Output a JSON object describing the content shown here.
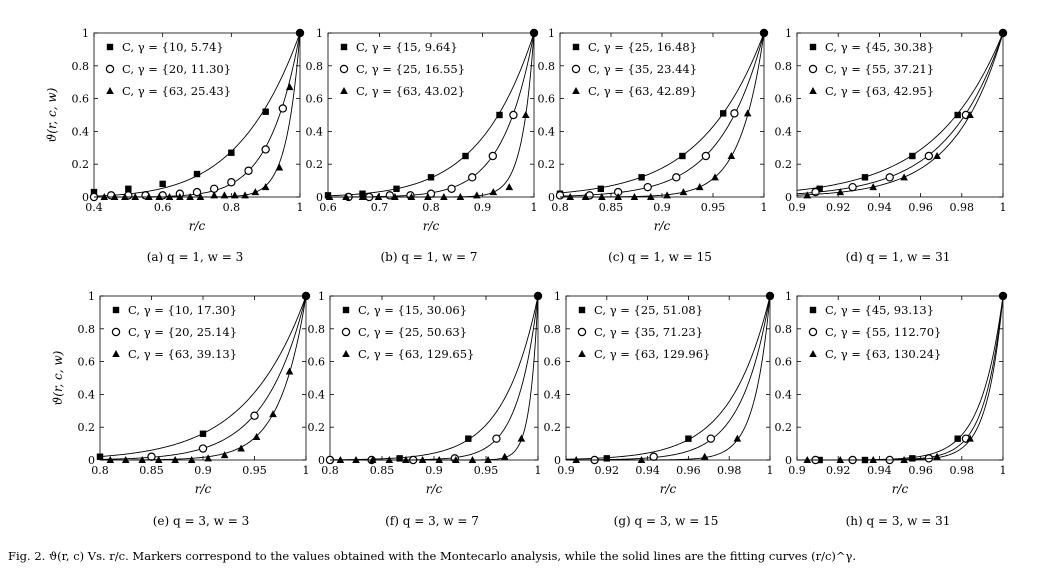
{
  "caption": "Fig. 2.   ϑ(r, c) Vs. r/c. Markers correspond to the values obtained with the Montecarlo analysis, while the solid lines are the fitting curves (r/c)^γ.",
  "chart_data": [
    {
      "type": "line",
      "subcaption": "(a) q = 1, w = 3",
      "xlabel": "r/c",
      "ylabel": "ϑ(r, c, w)",
      "xlim": [
        0.4,
        1
      ],
      "ylim": [
        0,
        1
      ],
      "xticks": [
        "0.4",
        "0.6",
        "0.8",
        "1"
      ],
      "xtickvals": [
        0.4,
        0.6,
        0.8,
        1
      ],
      "yticks": [
        "0",
        "0.2",
        "0.4",
        "0.6",
        "0.8",
        "1"
      ],
      "ytickvals": [
        0,
        0.2,
        0.4,
        0.6,
        0.8,
        1
      ],
      "series": [
        {
          "name": "C, γ = {10, 5.74}",
          "marker": "square",
          "gamma": 5.74,
          "x": [
            0.4,
            0.5,
            0.6,
            0.7,
            0.8,
            0.9,
            1.0
          ],
          "y": [
            0.03,
            0.05,
            0.08,
            0.14,
            0.27,
            0.52,
            1.0
          ]
        },
        {
          "name": "C, γ = {20, 11.30}",
          "marker": "circle",
          "gamma": 11.3,
          "x": [
            0.4,
            0.45,
            0.5,
            0.55,
            0.6,
            0.65,
            0.7,
            0.75,
            0.8,
            0.85,
            0.9,
            0.95,
            1.0
          ],
          "y": [
            0.0,
            0.01,
            0.01,
            0.01,
            0.01,
            0.02,
            0.03,
            0.05,
            0.09,
            0.16,
            0.29,
            0.54,
            1.0
          ]
        },
        {
          "name": "C, γ = {63, 25.43}",
          "marker": "triangle",
          "gamma": 25.43,
          "x": [
            0.43,
            0.46,
            0.49,
            0.52,
            0.56,
            0.59,
            0.62,
            0.65,
            0.68,
            0.71,
            0.75,
            0.78,
            0.81,
            0.84,
            0.87,
            0.9,
            0.94,
            0.97,
            1.0
          ],
          "y": [
            0,
            0,
            0,
            0,
            0,
            0,
            0,
            0,
            0,
            0,
            0.01,
            0.01,
            0.01,
            0.01,
            0.03,
            0.06,
            0.18,
            0.67,
            1.0
          ]
        }
      ]
    },
    {
      "type": "line",
      "subcaption": "(b) q = 1, w = 7",
      "xlabel": "r/c",
      "ylabel": "",
      "xlim": [
        0.6,
        1
      ],
      "ylim": [
        0,
        1
      ],
      "xticks": [
        "0.6",
        "0.7",
        "0.8",
        "0.9",
        "1"
      ],
      "xtickvals": [
        0.6,
        0.7,
        0.8,
        0.9,
        1
      ],
      "yticks": [
        "0",
        "0.2",
        "0.4",
        "0.6",
        "0.8",
        "1"
      ],
      "ytickvals": [
        0,
        0.2,
        0.4,
        0.6,
        0.8,
        1
      ],
      "series": [
        {
          "name": "C, γ = {15, 9.64}",
          "marker": "square",
          "gamma": 9.64,
          "x": [
            0.6,
            0.667,
            0.733,
            0.8,
            0.867,
            0.933,
            1.0
          ],
          "y": [
            0.01,
            0.02,
            0.05,
            0.12,
            0.25,
            0.5,
            1.0
          ]
        },
        {
          "name": "C, γ = {25, 16.55}",
          "marker": "circle",
          "gamma": 16.55,
          "x": [
            0.64,
            0.68,
            0.72,
            0.76,
            0.8,
            0.84,
            0.88,
            0.92,
            0.96,
            1.0
          ],
          "y": [
            0,
            0,
            0.01,
            0.01,
            0.02,
            0.05,
            0.12,
            0.25,
            0.5,
            1.0
          ]
        },
        {
          "name": "C, γ = {63, 43.02}",
          "marker": "triangle",
          "gamma": 43.02,
          "x": [
            0.603,
            0.635,
            0.667,
            0.698,
            0.73,
            0.762,
            0.794,
            0.825,
            0.857,
            0.889,
            0.921,
            0.952,
            0.984,
            1.0
          ],
          "y": [
            0,
            0,
            0,
            0,
            0,
            0,
            0,
            0,
            0,
            0.01,
            0.03,
            0.06,
            0.5,
            1.0
          ]
        }
      ]
    },
    {
      "type": "line",
      "subcaption": "(c) q = 1, w = 15",
      "xlabel": "r/c",
      "ylabel": "",
      "xlim": [
        0.8,
        1
      ],
      "ylim": [
        0,
        1
      ],
      "xticks": [
        "0.8",
        "0.85",
        "0.9",
        "0.95",
        "1"
      ],
      "xtickvals": [
        0.8,
        0.85,
        0.9,
        0.95,
        1
      ],
      "yticks": [
        "0",
        "0.2",
        "0.4",
        "0.6",
        "0.8",
        "1"
      ],
      "ytickvals": [
        0,
        0.2,
        0.4,
        0.6,
        0.8,
        1
      ],
      "series": [
        {
          "name": "C, γ = {25, 16.48}",
          "marker": "square",
          "gamma": 16.48,
          "x": [
            0.8,
            0.84,
            0.88,
            0.92,
            0.96,
            1.0
          ],
          "y": [
            0.02,
            0.05,
            0.12,
            0.25,
            0.51,
            1.0
          ]
        },
        {
          "name": "C, γ = {35, 23.44}",
          "marker": "circle",
          "gamma": 23.44,
          "x": [
            0.8,
            0.829,
            0.857,
            0.886,
            0.914,
            0.943,
            0.971,
            1.0
          ],
          "y": [
            0.01,
            0.01,
            0.03,
            0.06,
            0.12,
            0.25,
            0.51,
            1.0
          ]
        },
        {
          "name": "C, γ = {63, 42.89}",
          "marker": "triangle",
          "gamma": 42.89,
          "x": [
            0.81,
            0.825,
            0.841,
            0.857,
            0.873,
            0.889,
            0.905,
            0.921,
            0.937,
            0.952,
            0.968,
            0.984,
            1.0
          ],
          "y": [
            0,
            0,
            0,
            0,
            0,
            0,
            0.01,
            0.03,
            0.06,
            0.12,
            0.25,
            0.51,
            1.0
          ]
        }
      ]
    },
    {
      "type": "line",
      "subcaption": "(d) q = 1, w = 31",
      "xlabel": "",
      "ylabel": "",
      "xlim": [
        0.9,
        1
      ],
      "ylim": [
        0,
        1
      ],
      "xticks": [
        "0.9",
        "0.92",
        "0.94",
        "0.96",
        "0.98",
        "1"
      ],
      "xtickvals": [
        0.9,
        0.92,
        0.94,
        0.96,
        0.98,
        1
      ],
      "yticks": [
        "0",
        "0.2",
        "0.4",
        "0.6",
        "0.8",
        "1"
      ],
      "ytickvals": [
        0,
        0.2,
        0.4,
        0.6,
        0.8,
        1
      ],
      "series": [
        {
          "name": "C, γ = {45, 30.38}",
          "marker": "square",
          "gamma": 30.38,
          "x": [
            0.911,
            0.933,
            0.956,
            0.978,
            1.0
          ],
          "y": [
            0.05,
            0.12,
            0.25,
            0.5,
            1.0
          ]
        },
        {
          "name": "C, γ = {55, 37.21}",
          "marker": "circle",
          "gamma": 37.21,
          "x": [
            0.909,
            0.927,
            0.945,
            0.964,
            0.982,
            1.0
          ],
          "y": [
            0.03,
            0.06,
            0.12,
            0.25,
            0.5,
            1.0
          ]
        },
        {
          "name": "C, γ = {63, 42.95}",
          "marker": "triangle",
          "gamma": 42.95,
          "x": [
            0.905,
            0.921,
            0.937,
            0.952,
            0.968,
            0.984,
            1.0
          ],
          "y": [
            0.01,
            0.03,
            0.06,
            0.12,
            0.25,
            0.5,
            1.0
          ]
        }
      ]
    },
    {
      "type": "line",
      "subcaption": "(e) q = 3, w = 3",
      "xlabel": "r/c",
      "ylabel": "ϑ(r, c, w)",
      "xlim": [
        0.8,
        1
      ],
      "ylim": [
        0,
        1
      ],
      "xticks": [
        "0.8",
        "0.85",
        "0.9",
        "0.95",
        "1"
      ],
      "xtickvals": [
        0.8,
        0.85,
        0.9,
        0.95,
        1
      ],
      "yticks": [
        "0",
        "0.2",
        "0.4",
        "0.6",
        "0.8",
        "1"
      ],
      "ytickvals": [
        0,
        0.2,
        0.4,
        0.6,
        0.8,
        1
      ],
      "series": [
        {
          "name": "C, γ = {10, 17.30}",
          "marker": "square",
          "gamma": 17.3,
          "x": [
            0.8,
            0.9,
            1.0
          ],
          "y": [
            0.02,
            0.16,
            1.0
          ]
        },
        {
          "name": "C, γ = {20, 25.14}",
          "marker": "circle",
          "gamma": 25.14,
          "x": [
            0.85,
            0.9,
            0.95,
            1.0
          ],
          "y": [
            0.02,
            0.07,
            0.27,
            1.0
          ]
        },
        {
          "name": "C, γ = {63, 39.13}",
          "marker": "triangle",
          "gamma": 39.13,
          "x": [
            0.81,
            0.825,
            0.841,
            0.857,
            0.873,
            0.889,
            0.905,
            0.921,
            0.937,
            0.952,
            0.968,
            0.984,
            1.0
          ],
          "y": [
            0,
            0,
            0,
            0,
            0,
            0,
            0.01,
            0.03,
            0.07,
            0.14,
            0.28,
            0.54,
            1.0
          ]
        }
      ]
    },
    {
      "type": "line",
      "subcaption": "(f) q = 3, w = 7",
      "xlabel": "r/c",
      "ylabel": "",
      "xlim": [
        0.8,
        1
      ],
      "ylim": [
        0,
        1
      ],
      "xticks": [
        "0.8",
        "0.85",
        "0.9",
        "0.95",
        "1"
      ],
      "xtickvals": [
        0.8,
        0.85,
        0.9,
        0.95,
        1
      ],
      "yticks": [
        "0",
        "0.2",
        "0.4",
        "0.6",
        "0.8",
        "1"
      ],
      "ytickvals": [
        0,
        0.2,
        0.4,
        0.6,
        0.8,
        1
      ],
      "series": [
        {
          "name": "C, γ = {15, 30.06}",
          "marker": "square",
          "gamma": 30.06,
          "x": [
            0.8,
            0.867,
            0.933,
            1.0
          ],
          "y": [
            0,
            0.01,
            0.13,
            1.0
          ]
        },
        {
          "name": "C, γ = {25, 50.63}",
          "marker": "circle",
          "gamma": 50.63,
          "x": [
            0.8,
            0.84,
            0.88,
            0.92,
            0.96,
            1.0
          ],
          "y": [
            0,
            0,
            0,
            0.01,
            0.13,
            1.0
          ]
        },
        {
          "name": "C, γ = {63, 129.65}",
          "marker": "triangle",
          "gamma": 129.65,
          "x": [
            0.81,
            0.825,
            0.841,
            0.857,
            0.873,
            0.889,
            0.905,
            0.921,
            0.937,
            0.952,
            0.968,
            0.984,
            1.0
          ],
          "y": [
            0,
            0,
            0,
            0,
            0,
            0,
            0,
            0,
            0,
            0,
            0.02,
            0.13,
            1.0
          ]
        }
      ]
    },
    {
      "type": "line",
      "subcaption": "(g) q = 3, w = 15",
      "xlabel": "r/c",
      "ylabel": "",
      "xlim": [
        0.9,
        1
      ],
      "ylim": [
        0,
        1
      ],
      "xticks": [
        "0.9",
        "0.92",
        "0.94",
        "0.96",
        "0.98",
        "1"
      ],
      "xtickvals": [
        0.9,
        0.92,
        0.94,
        0.96,
        0.98,
        1
      ],
      "yticks": [
        "0",
        "0.2",
        "0.4",
        "0.6",
        "0.8",
        "1"
      ],
      "ytickvals": [
        0,
        0.2,
        0.4,
        0.6,
        0.8,
        1
      ],
      "series": [
        {
          "name": "C, γ = {25, 51.08}",
          "marker": "square",
          "gamma": 51.08,
          "x": [
            0.92,
            0.96,
            1.0
          ],
          "y": [
            0.01,
            0.13,
            1.0
          ]
        },
        {
          "name": "C, γ = {35, 71.23}",
          "marker": "circle",
          "gamma": 71.23,
          "x": [
            0.914,
            0.943,
            0.971,
            1.0
          ],
          "y": [
            0,
            0.02,
            0.13,
            1.0
          ]
        },
        {
          "name": "C, γ = {63, 129.96}",
          "marker": "triangle",
          "gamma": 129.96,
          "x": [
            0.905,
            0.937,
            0.968,
            0.984,
            1.0
          ],
          "y": [
            0,
            0,
            0.02,
            0.13,
            1.0
          ]
        }
      ]
    },
    {
      "type": "line",
      "subcaption": "(h) q = 3, w = 31",
      "xlabel": "r/c",
      "ylabel": "",
      "xlim": [
        0.9,
        1
      ],
      "ylim": [
        0,
        1
      ],
      "xticks": [
        "0.9",
        "0.92",
        "0.94",
        "0.96",
        "0.98",
        "1"
      ],
      "xtickvals": [
        0.9,
        0.92,
        0.94,
        0.96,
        0.98,
        1
      ],
      "yticks": [
        "0",
        "0.2",
        "0.4",
        "0.6",
        "0.8",
        "1"
      ],
      "ytickvals": [
        0,
        0.2,
        0.4,
        0.6,
        0.8,
        1
      ],
      "series": [
        {
          "name": "C, γ = {45, 93.13}",
          "marker": "square",
          "gamma": 93.13,
          "x": [
            0.911,
            0.933,
            0.956,
            0.978,
            1.0
          ],
          "y": [
            0,
            0,
            0.01,
            0.13,
            1.0
          ]
        },
        {
          "name": "C, γ = {55, 112.70}",
          "marker": "circle",
          "gamma": 112.7,
          "x": [
            0.909,
            0.927,
            0.945,
            0.964,
            0.982,
            1.0
          ],
          "y": [
            0,
            0,
            0,
            0.01,
            0.13,
            1.0
          ]
        },
        {
          "name": "C, γ = {63, 130.24}",
          "marker": "triangle",
          "gamma": 130.24,
          "x": [
            0.905,
            0.921,
            0.937,
            0.952,
            0.968,
            0.984,
            1.0
          ],
          "y": [
            0,
            0,
            0,
            0,
            0.02,
            0.13,
            1.0
          ]
        }
      ]
    }
  ]
}
